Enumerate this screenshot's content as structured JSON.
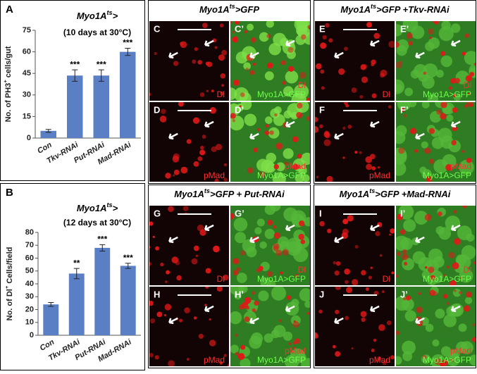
{
  "chart_data": [
    {
      "type": "bar",
      "panel": "A",
      "title": [
        "Myo1A",
        "ts",
        ">"
      ],
      "subtitle": "(10 days at 30°C)",
      "y_label": [
        "No. of PH3",
        "+",
        " cells/gut"
      ],
      "categories": [
        "Con",
        "Tkv-RNAi",
        "Put-RNAi",
        "Mad-RNAi"
      ],
      "values": [
        5,
        43.5,
        43.5,
        60
      ],
      "errors": [
        1,
        4,
        4,
        2.5
      ],
      "significance": [
        null,
        "***",
        "***",
        "***"
      ],
      "color": "#5b7fc4",
      "ylim": [
        0,
        75
      ],
      "yticks": [
        0,
        15,
        30,
        45,
        60,
        75
      ]
    },
    {
      "type": "bar",
      "panel": "B",
      "title": [
        "Myo1A",
        "ts",
        ">"
      ],
      "subtitle": "(12 days at 30°C)",
      "y_label": [
        "No. of Dl",
        "+",
        " Cells/field"
      ],
      "categories": [
        "Con",
        "Tkv-RNAi",
        "Put-RNAi",
        "Mad-RNAi"
      ],
      "values": [
        24,
        48,
        68,
        54
      ],
      "errors": [
        1.5,
        4,
        2.5,
        2
      ],
      "significance": [
        null,
        "**",
        "***",
        "***"
      ],
      "color": "#5b7fc4",
      "ylim": [
        0,
        80
      ],
      "yticks": [
        0,
        10,
        20,
        30,
        40,
        50,
        60,
        70,
        80
      ]
    }
  ],
  "panels": [
    {
      "header": [
        "Myo1A",
        "ts",
        ">GFP"
      ],
      "images": [
        {
          "label": "C",
          "stains": [
            "Dl"
          ]
        },
        {
          "label": "C’",
          "stains": [
            "Dl",
            "Myo1A>GFP"
          ]
        },
        {
          "label": "D",
          "stains": [
            "pMad"
          ]
        },
        {
          "label": "D’",
          "stains": [
            "pMad",
            "Myo1A>GFP"
          ]
        }
      ]
    },
    {
      "header": [
        "Myo1A",
        "ts",
        ">GFP +Tkv-RNAi"
      ],
      "images": [
        {
          "label": "E",
          "stains": [
            "Dl"
          ]
        },
        {
          "label": "E’",
          "stains": [
            "Dl",
            "Myo1A>GFP"
          ]
        },
        {
          "label": "F",
          "stains": [
            "pMad"
          ]
        },
        {
          "label": "F’",
          "stains": [
            "pMad",
            "Myo1A>GFP"
          ]
        }
      ]
    },
    {
      "header": [
        "Myo1A",
        "ts",
        ">GFP + Put-RNAi"
      ],
      "images": [
        {
          "label": "G",
          "stains": [
            "Dl"
          ]
        },
        {
          "label": "G’",
          "stains": [
            "Dl",
            "Myo1A>GFP"
          ]
        },
        {
          "label": "H",
          "stains": [
            "pMad"
          ]
        },
        {
          "label": "H’",
          "stains": [
            "pMad",
            "Myo1A>GFP"
          ]
        }
      ]
    },
    {
      "header": [
        "Myo1A",
        "ts",
        ">GFP +Mad-RNAi"
      ],
      "images": [
        {
          "label": "I",
          "stains": [
            "Dl"
          ]
        },
        {
          "label": "I’",
          "stains": [
            "Dl",
            "Myo1A>GFP"
          ]
        },
        {
          "label": "J",
          "stains": [
            "pMad"
          ]
        },
        {
          "label": "J’",
          "stains": [
            "pMad",
            "Myo1A>GFP"
          ]
        }
      ]
    }
  ]
}
